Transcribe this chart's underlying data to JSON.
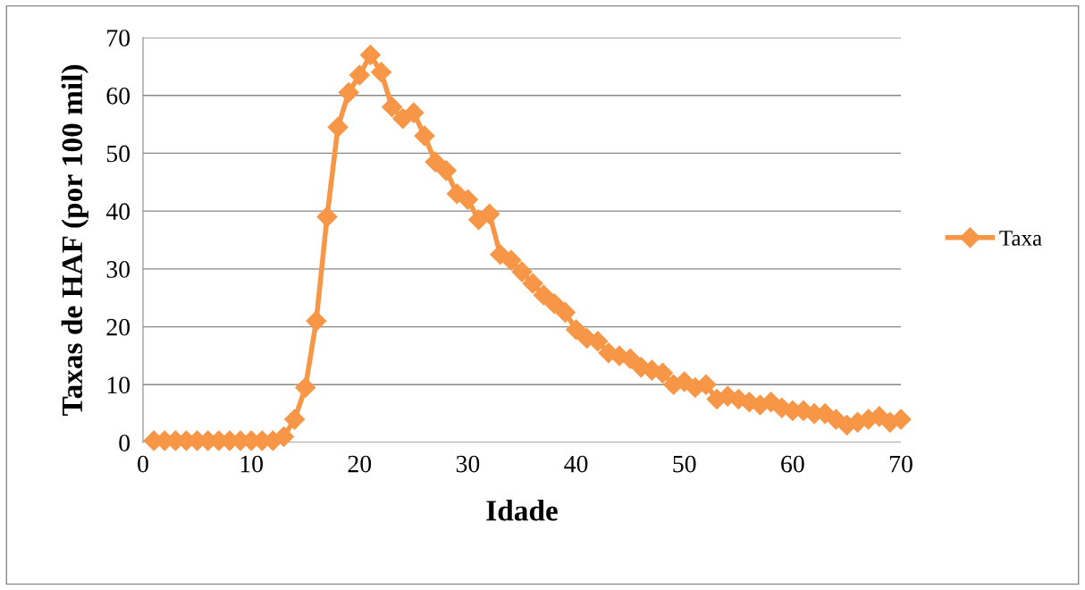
{
  "chart_data": {
    "type": "line",
    "xlabel": "Idade",
    "ylabel": "Taxas de HAF (por 100 mil)",
    "x": [
      1,
      2,
      3,
      4,
      5,
      6,
      7,
      8,
      9,
      10,
      11,
      12,
      13,
      14,
      15,
      16,
      17,
      18,
      19,
      20,
      21,
      22,
      23,
      24,
      25,
      26,
      27,
      28,
      29,
      30,
      31,
      32,
      33,
      34,
      35,
      36,
      37,
      38,
      39,
      40,
      41,
      42,
      43,
      44,
      45,
      46,
      47,
      48,
      49,
      50,
      51,
      52,
      53,
      54,
      55,
      56,
      57,
      58,
      59,
      60,
      61,
      62,
      63,
      64,
      65,
      66,
      67,
      68,
      69,
      70
    ],
    "series": [
      {
        "name": "Taxa",
        "color": "#f79646",
        "values": [
          0.3,
          0.3,
          0.3,
          0.3,
          0.3,
          0.3,
          0.3,
          0.3,
          0.3,
          0.3,
          0.3,
          0.3,
          1,
          4,
          9.5,
          21,
          39,
          54.5,
          60.5,
          63.5,
          67,
          64,
          58,
          56,
          57,
          53,
          48.5,
          47,
          43,
          42,
          38.5,
          39.5,
          32.5,
          31.5,
          29.5,
          27.5,
          25.5,
          24,
          22.5,
          19.5,
          18,
          17.5,
          15.5,
          15,
          14.5,
          13,
          12.5,
          12,
          10,
          10.5,
          9.5,
          10,
          7.5,
          8,
          7.5,
          7,
          6.5,
          7,
          6,
          5.5,
          5.5,
          5,
          5,
          4,
          3,
          3.5,
          4,
          4.5,
          3.5,
          4
        ]
      }
    ],
    "xlim": [
      0,
      70
    ],
    "xticks": [
      0,
      10,
      20,
      30,
      40,
      50,
      60,
      70
    ],
    "ylim": [
      0,
      70
    ],
    "yticks": [
      0,
      10,
      20,
      30,
      40,
      50,
      60,
      70
    ],
    "grid": "y",
    "legend": "right",
    "marker": "diamond",
    "line_style": "solid"
  }
}
